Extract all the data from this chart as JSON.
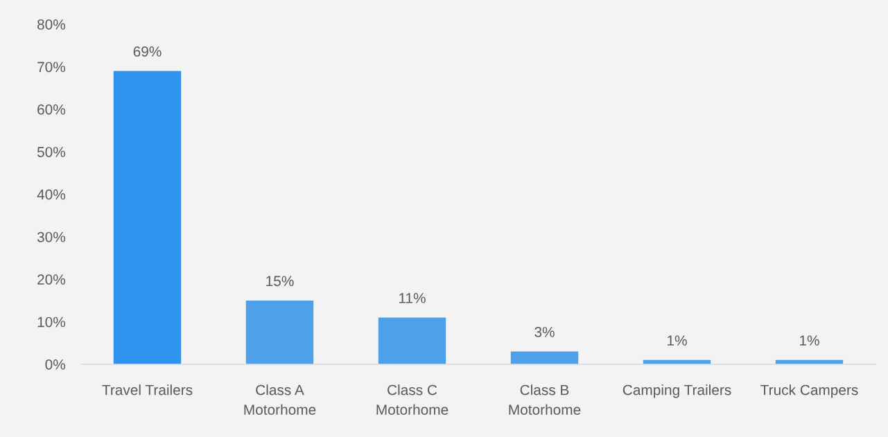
{
  "chart_data": {
    "type": "bar",
    "categories": [
      "Travel Trailers",
      "Class A\nMotorhome",
      "Class C\nMotorhome",
      "Class B\nMotorhome",
      "Camping Trailers",
      "Truck Campers"
    ],
    "values": [
      69,
      15,
      11,
      3,
      1,
      1
    ],
    "colors": [
      "#2f93ee",
      "#4ea1e9",
      "#4ea1e9",
      "#4ea1e9",
      "#4ea1e9",
      "#4ea1e9"
    ],
    "value_labels": [
      "69%",
      "15%",
      "11%",
      "3%",
      "1%",
      "1%"
    ],
    "ylim": [
      0,
      80
    ],
    "yticks": [
      {
        "value": 0,
        "label": "0%"
      },
      {
        "value": 10,
        "label": "10%"
      },
      {
        "value": 20,
        "label": "20%"
      },
      {
        "value": 30,
        "label": "30%"
      },
      {
        "value": 40,
        "label": "40%"
      },
      {
        "value": 50,
        "label": "50%"
      },
      {
        "value": 60,
        "label": "60%"
      },
      {
        "value": 70,
        "label": "70%"
      },
      {
        "value": 80,
        "label": "80%"
      }
    ]
  }
}
